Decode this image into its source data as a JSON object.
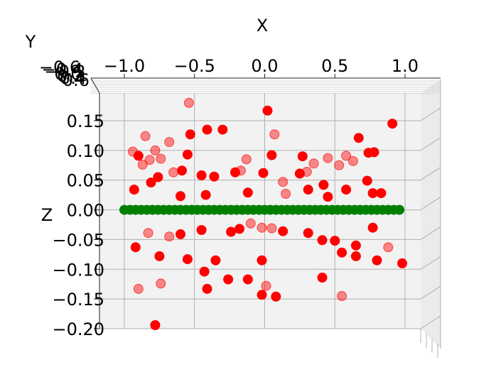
{
  "chart_data": {
    "type": "scatter",
    "projection": "3d",
    "view": "looking along the Y axis",
    "title": "",
    "xlabel": "X",
    "ylabel": "Y",
    "zlabel": "Z",
    "xlim": [
      -1.0,
      1.0
    ],
    "zlim": [
      -0.2,
      0.2
    ],
    "x_ticks": [
      "−1.0",
      "−0.5",
      "0.0",
      "0.5",
      "1.0"
    ],
    "z_ticks": [
      "−0.20",
      "−0.15",
      "−0.10",
      "−0.05",
      "0.00",
      "0.05",
      "0.10",
      "0.15"
    ],
    "y_ticks": [
      "−0.6",
      "−0.4",
      "−0.2",
      "0.0",
      "0.2",
      "0.4",
      "0.6"
    ],
    "grid": true,
    "pane_color": "#f2f2f2",
    "series": [
      {
        "color": "#ff0000",
        "points": [
          {
            "x": -0.53,
            "z": 0.127,
            "a": 1
          },
          {
            "x": -0.41,
            "z": 0.135,
            "a": 1
          },
          {
            "x": -0.3,
            "z": 0.135,
            "a": 1
          },
          {
            "x": 0.02,
            "z": 0.167,
            "a": 1
          },
          {
            "x": 0.07,
            "z": 0.127,
            "a": 0.45
          },
          {
            "x": -0.54,
            "z": 0.18,
            "a": 0.45
          },
          {
            "x": -0.85,
            "z": 0.124,
            "a": 0.45
          },
          {
            "x": -0.68,
            "z": 0.114,
            "a": 0.45
          },
          {
            "x": -0.78,
            "z": 0.1,
            "a": 0.45
          },
          {
            "x": -0.94,
            "z": 0.098,
            "a": 0.45
          },
          {
            "x": -0.9,
            "z": 0.091,
            "a": 1
          },
          {
            "x": -0.55,
            "z": 0.093,
            "a": 1
          },
          {
            "x": -0.82,
            "z": 0.084,
            "a": 0.45
          },
          {
            "x": -0.87,
            "z": 0.076,
            "a": 0.45
          },
          {
            "x": -0.74,
            "z": 0.086,
            "a": 0.45
          },
          {
            "x": 0.74,
            "z": 0.096,
            "a": 1
          },
          {
            "x": 0.78,
            "z": 0.097,
            "a": 1
          },
          {
            "x": 0.67,
            "z": 0.121,
            "a": 1
          },
          {
            "x": 0.91,
            "z": 0.145,
            "a": 1
          },
          {
            "x": 0.58,
            "z": 0.091,
            "a": 0.45
          },
          {
            "x": 0.45,
            "z": 0.087,
            "a": 0.45
          },
          {
            "x": 0.27,
            "z": 0.09,
            "a": 1
          },
          {
            "x": 0.05,
            "z": 0.092,
            "a": 1
          },
          {
            "x": -0.13,
            "z": 0.085,
            "a": 0.45
          },
          {
            "x": 0.63,
            "z": 0.082,
            "a": 0.45
          },
          {
            "x": 0.53,
            "z": 0.075,
            "a": 0.45
          },
          {
            "x": 0.35,
            "z": 0.078,
            "a": 0.45
          },
          {
            "x": -0.81,
            "z": 0.046,
            "a": 1
          },
          {
            "x": -0.76,
            "z": 0.055,
            "a": 1
          },
          {
            "x": -0.59,
            "z": 0.066,
            "a": 1
          },
          {
            "x": -0.65,
            "z": 0.063,
            "a": 0.45
          },
          {
            "x": -0.45,
            "z": 0.058,
            "a": 1
          },
          {
            "x": -0.36,
            "z": 0.056,
            "a": 1
          },
          {
            "x": -0.21,
            "z": 0.063,
            "a": 1
          },
          {
            "x": -0.17,
            "z": 0.066,
            "a": 0.45
          },
          {
            "x": -0.01,
            "z": 0.062,
            "a": 1
          },
          {
            "x": 0.13,
            "z": 0.047,
            "a": 0.45
          },
          {
            "x": 0.25,
            "z": 0.061,
            "a": 1
          },
          {
            "x": 0.3,
            "z": 0.064,
            "a": 0.45
          },
          {
            "x": 0.42,
            "z": 0.042,
            "a": 1
          },
          {
            "x": 0.58,
            "z": 0.034,
            "a": 1
          },
          {
            "x": 0.73,
            "z": 0.049,
            "a": 1
          },
          {
            "x": 0.77,
            "z": 0.028,
            "a": 1
          },
          {
            "x": 0.83,
            "z": 0.028,
            "a": 1
          },
          {
            "x": -0.93,
            "z": 0.034,
            "a": 1
          },
          {
            "x": -0.6,
            "z": 0.023,
            "a": 1
          },
          {
            "x": -0.42,
            "z": 0.025,
            "a": 1
          },
          {
            "x": -0.12,
            "z": 0.029,
            "a": 1
          },
          {
            "x": 0.15,
            "z": 0.027,
            "a": 0.45
          },
          {
            "x": 0.31,
            "z": 0.034,
            "a": 1
          },
          {
            "x": 0.45,
            "z": 0.022,
            "a": 1
          },
          {
            "x": -0.45,
            "z": -0.034,
            "a": 1
          },
          {
            "x": -0.6,
            "z": -0.041,
            "a": 1
          },
          {
            "x": -0.68,
            "z": -0.045,
            "a": 0.45
          },
          {
            "x": -0.83,
            "z": -0.039,
            "a": 0.45
          },
          {
            "x": -0.24,
            "z": -0.037,
            "a": 1
          },
          {
            "x": -0.18,
            "z": -0.032,
            "a": 1
          },
          {
            "x": -0.1,
            "z": -0.023,
            "a": 0.45
          },
          {
            "x": -0.02,
            "z": -0.03,
            "a": 0.45
          },
          {
            "x": 0.05,
            "z": -0.031,
            "a": 0.45
          },
          {
            "x": 0.13,
            "z": -0.036,
            "a": 1
          },
          {
            "x": 0.31,
            "z": -0.039,
            "a": 1
          },
          {
            "x": 0.41,
            "z": -0.051,
            "a": 1
          },
          {
            "x": 0.5,
            "z": -0.052,
            "a": 1
          },
          {
            "x": 0.65,
            "z": -0.06,
            "a": 1
          },
          {
            "x": 0.77,
            "z": -0.03,
            "a": 1
          },
          {
            "x": 0.88,
            "z": -0.063,
            "a": 0.45
          },
          {
            "x": -0.92,
            "z": -0.063,
            "a": 1
          },
          {
            "x": -0.75,
            "z": -0.078,
            "a": 1
          },
          {
            "x": -0.55,
            "z": -0.083,
            "a": 1
          },
          {
            "x": -0.35,
            "z": -0.085,
            "a": 1
          },
          {
            "x": -0.02,
            "z": -0.085,
            "a": 1
          },
          {
            "x": 0.55,
            "z": -0.072,
            "a": 1
          },
          {
            "x": 0.65,
            "z": -0.078,
            "a": 1
          },
          {
            "x": 0.8,
            "z": -0.085,
            "a": 1
          },
          {
            "x": -0.9,
            "z": -0.133,
            "a": 0.45
          },
          {
            "x": -0.74,
            "z": -0.124,
            "a": 0.45
          },
          {
            "x": -0.43,
            "z": -0.104,
            "a": 1
          },
          {
            "x": -0.26,
            "z": -0.117,
            "a": 1
          },
          {
            "x": -0.12,
            "z": -0.117,
            "a": 1
          },
          {
            "x": 0.01,
            "z": -0.128,
            "a": 0.45
          },
          {
            "x": 0.41,
            "z": -0.114,
            "a": 1
          },
          {
            "x": -0.41,
            "z": -0.133,
            "a": 1
          },
          {
            "x": -0.02,
            "z": -0.143,
            "a": 1
          },
          {
            "x": 0.08,
            "z": -0.146,
            "a": 1
          },
          {
            "x": 0.55,
            "z": -0.145,
            "a": 0.45
          },
          {
            "x": -0.78,
            "z": -0.194,
            "a": 1
          },
          {
            "x": 0.98,
            "z": -0.09,
            "a": 1
          }
        ]
      },
      {
        "color": "#008000",
        "points": [
          {
            "x": -1.0,
            "z": 0
          },
          {
            "x": -0.96,
            "z": 0
          },
          {
            "x": -0.92,
            "z": 0
          },
          {
            "x": -0.88,
            "z": 0
          },
          {
            "x": -0.84,
            "z": 0
          },
          {
            "x": -0.8,
            "z": 0
          },
          {
            "x": -0.76,
            "z": 0
          },
          {
            "x": -0.72,
            "z": 0
          },
          {
            "x": -0.68,
            "z": 0
          },
          {
            "x": -0.64,
            "z": 0
          },
          {
            "x": -0.6,
            "z": 0
          },
          {
            "x": -0.56,
            "z": 0
          },
          {
            "x": -0.52,
            "z": 0
          },
          {
            "x": -0.48,
            "z": 0
          },
          {
            "x": -0.44,
            "z": 0
          },
          {
            "x": -0.4,
            "z": 0
          },
          {
            "x": -0.36,
            "z": 0
          },
          {
            "x": -0.32,
            "z": 0
          },
          {
            "x": -0.28,
            "z": 0
          },
          {
            "x": -0.24,
            "z": 0
          },
          {
            "x": -0.2,
            "z": 0
          },
          {
            "x": -0.16,
            "z": 0
          },
          {
            "x": -0.12,
            "z": 0
          },
          {
            "x": -0.08,
            "z": 0
          },
          {
            "x": -0.04,
            "z": 0
          },
          {
            "x": 0.0,
            "z": 0
          },
          {
            "x": 0.04,
            "z": 0
          },
          {
            "x": 0.08,
            "z": 0
          },
          {
            "x": 0.12,
            "z": 0
          },
          {
            "x": 0.16,
            "z": 0
          },
          {
            "x": 0.2,
            "z": 0
          },
          {
            "x": 0.24,
            "z": 0
          },
          {
            "x": 0.28,
            "z": 0
          },
          {
            "x": 0.32,
            "z": 0
          },
          {
            "x": 0.36,
            "z": 0
          },
          {
            "x": 0.4,
            "z": 0
          },
          {
            "x": 0.44,
            "z": 0
          },
          {
            "x": 0.48,
            "z": 0
          },
          {
            "x": 0.52,
            "z": 0
          },
          {
            "x": 0.56,
            "z": 0
          },
          {
            "x": 0.6,
            "z": 0
          },
          {
            "x": 0.64,
            "z": 0
          },
          {
            "x": 0.68,
            "z": 0
          },
          {
            "x": 0.72,
            "z": 0
          },
          {
            "x": 0.76,
            "z": 0
          },
          {
            "x": 0.8,
            "z": 0
          },
          {
            "x": 0.84,
            "z": 0
          },
          {
            "x": 0.88,
            "z": 0
          },
          {
            "x": 0.92,
            "z": 0
          },
          {
            "x": 0.96,
            "z": 0
          }
        ]
      }
    ]
  }
}
